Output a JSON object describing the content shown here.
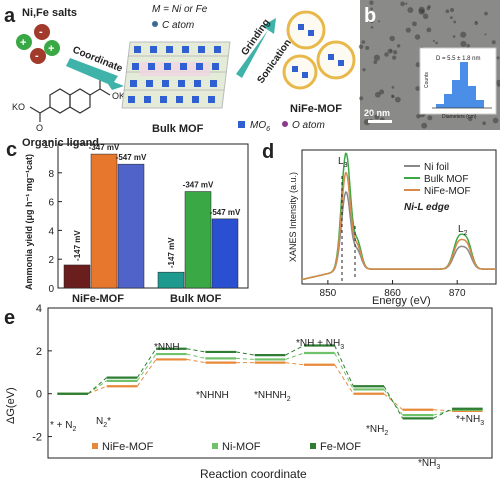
{
  "panel_a": {
    "label": "a",
    "salts_label": "Ni,Fe salts",
    "legend_metal": "M = Ni or Fe",
    "legend_c": "C atom",
    "arrow_coordinate": "Coordinate",
    "arrow_grinding": "Grinding",
    "arrow_sonication": "Sonication",
    "ligand_ko_left": "KO",
    "ligand_ok_right": "OK",
    "ligand_o1": "O",
    "ligand_o2": "O",
    "ligand_caption": "Organic ligand",
    "bulk_caption": "Bulk MOF",
    "mof_caption": "NiFe-MOF",
    "legend_mo6": "MO",
    "legend_mo6_sub": "6",
    "legend_o": "O atom",
    "colors": {
      "metal_blue": "#2f5fd1",
      "ring_gold": "#e8b94a",
      "arrow_teal": "#3fb3a9",
      "salt_green": "#3aa845",
      "salt_red": "#a13a2a"
    }
  },
  "panel_b": {
    "label": "b",
    "scale_bar": "20 nm",
    "inset_note": "D = 5.5 ± 1.8 nm",
    "inset_ylabel": "Counts",
    "inset_xlabel": "Diameters (nm)",
    "inset_ticks": [
      "3",
      "4",
      "5",
      "6",
      "7"
    ]
  },
  "panel_c": {
    "label": "c",
    "ylabel": "Ammonia yield (μg h⁻¹ mg⁻¹cat)",
    "chart_data": {
      "type": "bar",
      "categories": [
        "NiFe-MOF",
        "Bulk MOF"
      ],
      "series": [
        {
          "name": "-147 mV",
          "values": [
            1.6,
            1.1
          ],
          "color": "#6b1e1e"
        },
        {
          "name": "-347 mV",
          "values": [
            9.3,
            6.7
          ],
          "color": "#e8772e"
        },
        {
          "name": "-547 mV",
          "values": [
            8.6,
            4.8
          ],
          "color": "#4f63c9"
        }
      ],
      "bulk_colors": [
        "#1f9a8e",
        "#3aa845",
        "#2a4fd0"
      ],
      "ylim": [
        0,
        10
      ],
      "yticks": [
        "0",
        "2",
        "4",
        "6",
        "8",
        "10"
      ]
    }
  },
  "panel_d": {
    "label": "d",
    "title_edge": "Ni-L edge",
    "ylabel": "XANES Intensity (a.u.)",
    "xlabel": "Energy (eV)",
    "peak_l3": "L",
    "peak_l3_sub": "3",
    "peak_l2": "L",
    "peak_l2_sub": "2",
    "chart_data": {
      "type": "line",
      "x_ticks": [
        "850",
        "860",
        "870"
      ],
      "xlim": [
        846,
        876
      ],
      "series": [
        {
          "name": "Ni foil",
          "color": "#888888",
          "peak_l3": 5.2,
          "peak_l2": 1.3
        },
        {
          "name": "Bulk MOF",
          "color": "#3aa845",
          "peak_l3": 7.8,
          "peak_l2": 2.0
        },
        {
          "name": "NiFe-MOF",
          "color": "#d98a4a",
          "peak_l3": 6.5,
          "peak_l2": 1.7
        }
      ]
    }
  },
  "panel_e": {
    "label": "e",
    "ylabel": "ΔG(eV)",
    "xlabel": "Reaction coordinate",
    "yticks": [
      "4",
      "2",
      "0",
      "-2"
    ],
    "chart_data": {
      "type": "line",
      "ylim": [
        -3,
        4
      ],
      "steps": [
        "* + N2",
        "N2*",
        "*NNH",
        "*NHNH",
        "*NHNH2",
        "*NH + NH3",
        "*NH2",
        "*NH3",
        "*+NH3"
      ],
      "series": [
        {
          "name": "NiFe-MOF",
          "color": "#e8893a",
          "values": [
            0,
            0.35,
            1.6,
            1.45,
            1.45,
            1.35,
            0.0,
            -0.75,
            -0.8
          ]
        },
        {
          "name": "Ni-MOF",
          "color": "#6fc16a",
          "values": [
            0,
            0.6,
            1.85,
            1.65,
            1.6,
            1.9,
            0.2,
            -1.0,
            -0.75
          ]
        },
        {
          "name": "Fe-MOF",
          "color": "#2e7d32",
          "values": [
            0,
            0.75,
            2.1,
            1.95,
            1.8,
            2.25,
            0.35,
            -1.15,
            -0.7
          ]
        }
      ]
    },
    "step_labels": {
      "s0a": "* + N",
      "s0b": "2",
      "s1a": "N",
      "s1b": "2",
      "s1c": "*",
      "s2": "*NNH",
      "s3": "*NHNH",
      "s4a": "*NHNH",
      "s4b": "2",
      "s5a": "*NH + NH",
      "s5b": "3",
      "s6a": "*NH",
      "s6b": "2",
      "s7a": "*NH",
      "s7b": "3",
      "s8a": "*+NH",
      "s8b": "3"
    }
  }
}
